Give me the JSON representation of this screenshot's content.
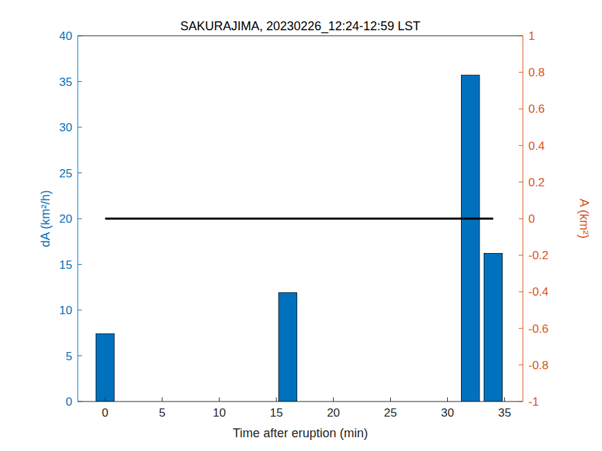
{
  "chart_data": {
    "type": "bar",
    "title": "SAKURAJIMA, 20230226_12:24-12:59 LST",
    "x_label": "Time after eruption (min)",
    "y_label": "dA (km²/h)",
    "y2_label": "A (km²)",
    "x": [
      0,
      16,
      32,
      34
    ],
    "series": [
      {
        "type": "bar",
        "color": "#0072bd",
        "values": [
          7.4,
          11.9,
          35.7,
          16.2
        ]
      },
      {
        "type": "line",
        "color": "#000000",
        "axis": "y2",
        "values": [
          0,
          0,
          0,
          0
        ]
      }
    ],
    "xlim": [
      -2.4,
      36.6
    ],
    "xticks": [
      0,
      5,
      10,
      15,
      20,
      25,
      30,
      35
    ],
    "ylim": [
      0,
      40
    ],
    "yticks": [
      0,
      5,
      10,
      15,
      20,
      25,
      30,
      35,
      40
    ],
    "y2lim": [
      -1,
      1
    ],
    "y2ticks": [
      -1,
      -0.8,
      -0.6,
      -0.4,
      -0.2,
      0,
      0.2,
      0.4,
      0.6,
      0.8,
      1
    ]
  }
}
